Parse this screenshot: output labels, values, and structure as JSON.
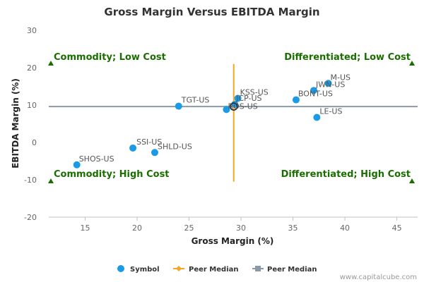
{
  "chart_data": {
    "type": "scatter",
    "title": "Gross Margin Versus EBITDA Margin",
    "xlabel": "Gross Margin (%)",
    "ylabel": "EBITDA Margin (%)",
    "xlim": [
      11.5,
      47
    ],
    "ylim": [
      -20,
      30
    ],
    "xticks": [
      15,
      20,
      25,
      30,
      35,
      40,
      45
    ],
    "yticks": [
      30,
      20,
      10,
      0,
      -10,
      -20
    ],
    "grid": false,
    "points": [
      {
        "label": "SHOS-US",
        "x": 14.2,
        "y": -6.0
      },
      {
        "label": "SSI-US",
        "x": 19.6,
        "y": -1.5
      },
      {
        "label": "SHLD-US",
        "x": 21.7,
        "y": -2.7
      },
      {
        "label": "TGT-US",
        "x": 24.0,
        "y": 9.7
      },
      {
        "label": "ROS-US",
        "x": 28.6,
        "y": 8.8
      },
      {
        "label": "JCP-US",
        "x": 29.4,
        "y": 10.2
      },
      {
        "label": "KSS-US",
        "x": 29.7,
        "y": 11.8
      },
      {
        "label": "BONT-US",
        "x": 35.3,
        "y": 11.4
      },
      {
        "label": "JWN-US",
        "x": 37.0,
        "y": 13.9
      },
      {
        "label": "M-US",
        "x": 38.4,
        "y": 15.8
      },
      {
        "label": "LE-US",
        "x": 37.3,
        "y": 6.7
      }
    ],
    "peer_median": {
      "x": 29.3,
      "y": 9.6
    },
    "quadrant_labels": [
      {
        "text": "Commodity; Low Cost",
        "corner": "top-left"
      },
      {
        "text": "Differentiated; Low Cost",
        "corner": "top-right"
      },
      {
        "text": "Commodity; High Cost",
        "corner": "bottom-left"
      },
      {
        "text": "Differentiated; High Cost",
        "corner": "bottom-right"
      }
    ],
    "legend": {
      "position": "bottom",
      "items": [
        {
          "label": "Symbol",
          "marker": "circle",
          "color": "#1a9be6"
        },
        {
          "label": "Peer Median",
          "marker": "line-diamond",
          "color": "#f5a623"
        },
        {
          "label": "Peer Median",
          "marker": "line-square",
          "color": "#8a99a6"
        }
      ]
    },
    "colors": {
      "points": "#1a9be6",
      "vertical_median": "#f5a623",
      "horizontal_median": "#8a99a6",
      "quadrant_text": "#1a6e00",
      "quadrant_marker": "#1a6e00"
    }
  },
  "credit": "www.capitalcube.com"
}
